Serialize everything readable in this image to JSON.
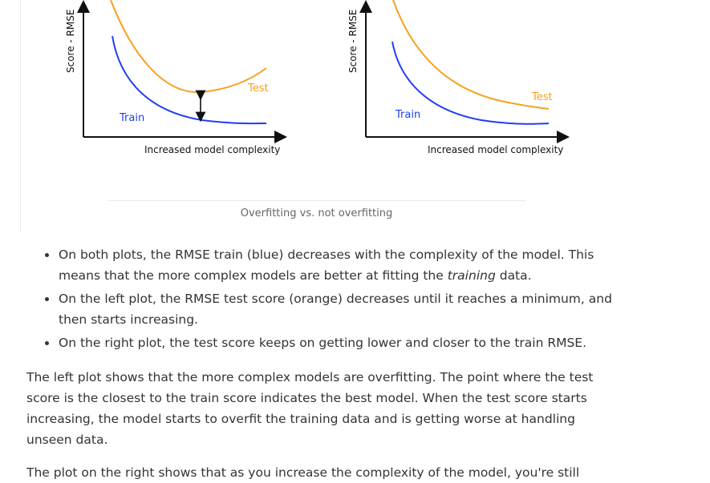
{
  "figure": {
    "caption": "Overfitting vs. not overfitting",
    "left_plot": {
      "ylabel": "Score - RMSE",
      "xlabel": "Increased model complexity",
      "test_label": "Test",
      "train_label": "Train"
    },
    "right_plot": {
      "ylabel": "Score - RMSE",
      "xlabel": "Increased model complexity",
      "test_label": "Test",
      "train_label": "Train"
    },
    "colors": {
      "test": "#f7a01c",
      "train": "#1f3df5",
      "axis": "#111111"
    }
  },
  "bullets": [
    {
      "before": "On both plots, the RMSE train (blue) decreases with the complexity of the model. This means that the more complex models are better at fitting the ",
      "em": "training",
      "after": " data."
    },
    {
      "text": "On the left plot, the RMSE test score (orange) decreases until it reaches a minimum, and then starts increasing."
    },
    {
      "text": "On the right plot, the test score keeps on getting lower and closer to the train RMSE."
    }
  ],
  "paragraphs": [
    "The left plot shows that the more complex models are overfitting.  The point where the test score is the closest to the train score indicates the best model. When the test score starts increasing, the model starts to overfit the training data and is getting worse at handling unseen data.",
    "The plot on the right shows that as you increase the complexity of the model, you're still"
  ]
}
